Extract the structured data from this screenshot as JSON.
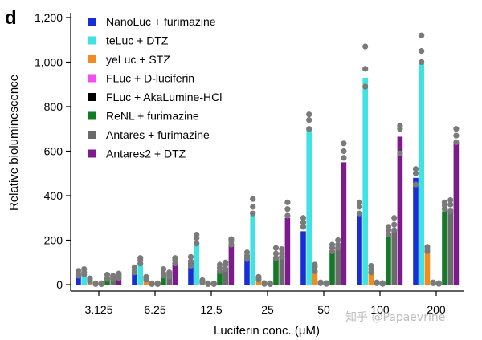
{
  "panel_label": "d",
  "watermark": "知乎 @Papaevrine",
  "colors": {
    "NanoLuc": "#1a2ed6",
    "teLuc": "#3fe3e3",
    "yeLuc": "#f28c1e",
    "FLuc_d": "#f24df2",
    "FLuc_aka": "#000000",
    "ReNL": "#137a28",
    "Antares": "#6b6b6b",
    "Antares2": "#7d1a8c",
    "dot": "#7a7a7a"
  },
  "chart_data": {
    "type": "bar",
    "title": "",
    "xlabel": "Luciferin conc. (μM)",
    "ylabel": "Relative bioluminescence",
    "ylim": [
      0,
      1200
    ],
    "yticks": [
      0,
      200,
      400,
      600,
      800,
      1000,
      1200
    ],
    "ytick_labels": [
      "0",
      "200",
      "400",
      "600",
      "800",
      "1,000",
      "1,200"
    ],
    "categories": [
      "3.125",
      "6.25",
      "12.5",
      "25",
      "50",
      "100",
      "200"
    ],
    "legend_position": "top-left",
    "series": [
      {
        "name": "NanoLuc + furimazine",
        "color_key": "NanoLuc",
        "values": [
          50,
          65,
          100,
          125,
          240,
          320,
          480
        ],
        "points": [
          [
            40,
            50,
            62
          ],
          [
            55,
            65,
            78
          ],
          [
            85,
            105,
            125
          ],
          [
            115,
            130,
            145
          ],
          [
            260,
            280,
            300
          ],
          [
            320,
            350,
            370
          ],
          [
            450,
            500,
            520
          ]
        ]
      },
      {
        "name": "teLuc + DTZ",
        "color_key": "teLuc",
        "values": [
          50,
          100,
          190,
          330,
          700,
          930,
          1010
        ],
        "points": [
          [
            45,
            55,
            70
          ],
          [
            95,
            110,
            120
          ],
          [
            185,
            210,
            225
          ],
          [
            320,
            350,
            385
          ],
          [
            700,
            740,
            765
          ],
          [
            890,
            970,
            1070
          ],
          [
            1000,
            1050,
            1120
          ]
        ]
      },
      {
        "name": "yeLuc + STZ",
        "color_key": "yeLuc",
        "values": [
          18,
          28,
          12,
          28,
          62,
          62,
          150
        ],
        "points": [
          [
            15,
            22,
            28
          ],
          [
            22,
            28,
            35
          ],
          [
            10,
            14,
            20
          ],
          [
            22,
            30,
            35
          ],
          [
            60,
            80,
            90
          ],
          [
            55,
            70,
            85
          ],
          [
            150,
            160,
            170
          ]
        ]
      },
      {
        "name": "FLuc + D-luciferin",
        "color_key": "FLuc_d",
        "values": [
          4,
          4,
          4,
          5,
          8,
          8,
          8
        ],
        "points": [
          [
            2,
            4,
            6
          ],
          [
            2,
            4,
            6
          ],
          [
            2,
            4,
            6
          ],
          [
            3,
            5,
            7
          ],
          [
            6,
            8,
            10
          ],
          [
            6,
            8,
            10
          ],
          [
            6,
            8,
            10
          ]
        ]
      },
      {
        "name": "FLuc + AkaLumine-HCl",
        "color_key": "FLuc_aka",
        "values": [
          4,
          4,
          4,
          4,
          5,
          5,
          5
        ],
        "points": [
          [
            2,
            4,
            6
          ],
          [
            2,
            4,
            6
          ],
          [
            2,
            4,
            6
          ],
          [
            2,
            4,
            6
          ],
          [
            3,
            5,
            7
          ],
          [
            3,
            5,
            7
          ],
          [
            3,
            5,
            7
          ]
        ]
      },
      {
        "name": "ReNL + furimazine",
        "color_key": "ReNL",
        "values": [
          30,
          48,
          62,
          125,
          145,
          230,
          330
        ],
        "points": [
          [
            25,
            30,
            45
          ],
          [
            40,
            50,
            70
          ],
          [
            60,
            75,
            90
          ],
          [
            120,
            140,
            165
          ],
          [
            150,
            165,
            180
          ],
          [
            225,
            245,
            260
          ],
          [
            340,
            355,
            370
          ]
        ]
      },
      {
        "name": "Antares + furimazine",
        "color_key": "Antares",
        "values": [
          28,
          38,
          68,
          130,
          160,
          250,
          340
        ],
        "points": [
          [
            25,
            30,
            40
          ],
          [
            35,
            45,
            55
          ],
          [
            70,
            90,
            100
          ],
          [
            125,
            140,
            160
          ],
          [
            165,
            180,
            200
          ],
          [
            245,
            270,
            300
          ],
          [
            330,
            360,
            380
          ]
        ]
      },
      {
        "name": "Antares2 + DTZ",
        "color_key": "Antares2",
        "values": [
          35,
          90,
          185,
          300,
          550,
          665,
          640
        ],
        "points": [
          [
            30,
            42,
            50
          ],
          [
            95,
            110,
            120
          ],
          [
            180,
            195,
            205
          ],
          [
            310,
            340,
            370
          ],
          [
            570,
            600,
            635
          ],
          [
            590,
            700,
            715
          ],
          [
            640,
            670,
            700
          ]
        ]
      }
    ]
  }
}
